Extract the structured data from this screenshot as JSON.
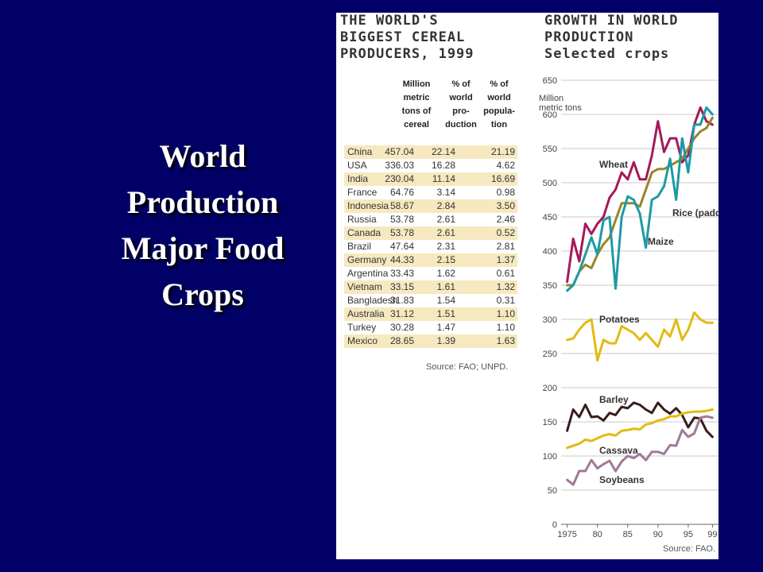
{
  "slide": {
    "title_lines": [
      "World",
      "Production",
      "Major Food",
      "Crops"
    ]
  },
  "table": {
    "heading_lines": [
      "THE WORLD'S",
      "BIGGEST CEREAL",
      "PRODUCERS, 1999"
    ],
    "columns": [
      [
        "Million",
        "metric",
        "tons of",
        "cereal"
      ],
      [
        "% of",
        "world",
        "pro-",
        "duction"
      ],
      [
        "% of",
        "world",
        "popula-",
        "tion"
      ]
    ],
    "rows": [
      [
        "China",
        "457.04",
        "22.14",
        "21.19"
      ],
      [
        "USA",
        "336.03",
        "16.28",
        "4.62"
      ],
      [
        "India",
        "230.04",
        "11.14",
        "16.69"
      ],
      [
        "France",
        "64.76",
        "3.14",
        "0.98"
      ],
      [
        "Indonesia",
        "58.67",
        "2.84",
        "3.50"
      ],
      [
        "Russia",
        "53.78",
        "2.61",
        "2.46"
      ],
      [
        "Canada",
        "53.78",
        "2.61",
        "0.52"
      ],
      [
        "Brazil",
        "47.64",
        "2.31",
        "2.81"
      ],
      [
        "Germany",
        "44.33",
        "2.15",
        "1.37"
      ],
      [
        "Argentina",
        "33.43",
        "1.62",
        "0.61"
      ],
      [
        "Vietnam",
        "33.15",
        "1.61",
        "1.32"
      ],
      [
        "Bangladesh",
        "31.83",
        "1.54",
        "0.31"
      ],
      [
        "Australia",
        "31.12",
        "1.51",
        "1.10"
      ],
      [
        "Turkey",
        "30.28",
        "1.47",
        "1.10"
      ],
      [
        "Mexico",
        "28.65",
        "1.39",
        "1.63"
      ]
    ],
    "source": "Source: FAO; UNPD."
  },
  "chart_data": {
    "type": "line",
    "heading_lines": [
      "GROWTH IN WORLD",
      "PRODUCTION",
      "Selected crops"
    ],
    "ylabel_lines": [
      "Million",
      "metric tons"
    ],
    "ylim": [
      0,
      650
    ],
    "yticks": [
      0,
      50,
      100,
      150,
      200,
      250,
      300,
      350,
      400,
      450,
      500,
      550,
      600,
      650
    ],
    "xlim": [
      1974,
      2000
    ],
    "xticks": [
      1975,
      1980,
      1985,
      1990,
      1995,
      1999
    ],
    "xtick_labels": [
      "1975",
      "80",
      "85",
      "90",
      "95",
      "99"
    ],
    "grid": true,
    "x": [
      1975,
      1976,
      1977,
      1978,
      1979,
      1980,
      1981,
      1982,
      1983,
      1984,
      1985,
      1986,
      1987,
      1988,
      1989,
      1990,
      1991,
      1992,
      1993,
      1994,
      1995,
      1996,
      1997,
      1998,
      1999
    ],
    "series": [
      {
        "name": "Wheat",
        "color": "#a5195a",
        "values": [
          355,
          418,
          385,
          440,
          425,
          440,
          450,
          478,
          490,
          515,
          505,
          530,
          505,
          505,
          540,
          590,
          545,
          565,
          565,
          530,
          540,
          585,
          610,
          590,
          585
        ]
      },
      {
        "name": "Rice (paddy)",
        "color": "#9a8428",
        "values": [
          350,
          350,
          370,
          380,
          375,
          395,
          410,
          420,
          445,
          470,
          470,
          470,
          465,
          490,
          515,
          520,
          520,
          525,
          530,
          535,
          550,
          565,
          575,
          580,
          595
        ]
      },
      {
        "name": "Maize",
        "color": "#1d9aa5",
        "values": [
          342,
          350,
          370,
          395,
          420,
          395,
          445,
          450,
          345,
          450,
          480,
          475,
          455,
          405,
          475,
          480,
          495,
          535,
          475,
          565,
          515,
          585,
          585,
          610,
          600
        ]
      },
      {
        "name": "Potatoes",
        "color": "#e2bb12",
        "values": [
          270,
          272,
          285,
          295,
          300,
          240,
          270,
          265,
          265,
          290,
          285,
          280,
          270,
          280,
          270,
          260,
          285,
          275,
          300,
          270,
          285,
          310,
          300,
          295,
          295
        ]
      },
      {
        "name": "Barley",
        "color": "#3a1c1c",
        "values": [
          137,
          168,
          157,
          175,
          157,
          158,
          152,
          163,
          160,
          172,
          170,
          178,
          175,
          168,
          163,
          178,
          168,
          162,
          170,
          160,
          142,
          156,
          155,
          137,
          128
        ]
      },
      {
        "name": "Cassava",
        "color": "#e2bb12",
        "values": [
          112,
          115,
          118,
          124,
          122,
          126,
          130,
          132,
          130,
          137,
          138,
          140,
          139,
          146,
          148,
          152,
          154,
          158,
          158,
          162,
          164,
          165,
          165,
          166,
          168
        ]
      },
      {
        "name": "Soybeans",
        "color": "#a07a96",
        "values": [
          65,
          58,
          78,
          78,
          94,
          82,
          88,
          93,
          78,
          92,
          100,
          97,
          103,
          94,
          106,
          106,
          103,
          116,
          115,
          138,
          128,
          133,
          156,
          158,
          156
        ]
      }
    ],
    "source": "Source: FAO."
  }
}
